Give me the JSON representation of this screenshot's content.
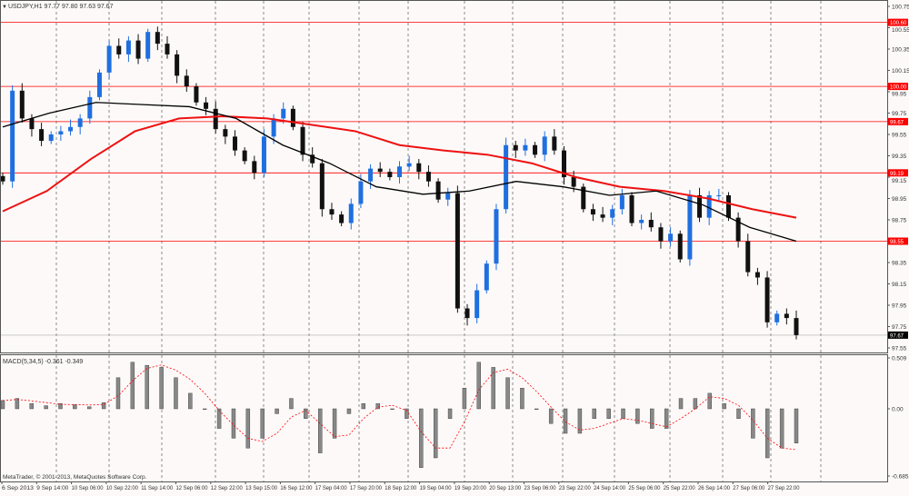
{
  "header": {
    "symbol_info": "USDJPY,H1  97.77 97.80 97.63 97.67"
  },
  "indicator": {
    "macd_label": "MACD(5,34,5) -0.361 -0.349"
  },
  "footer": {
    "copyright": "MetaTrader, © 2001-2013, MetaQuotes Software Corp."
  },
  "colors": {
    "background": "#fdf9f9",
    "bull": "#1f6fe0",
    "bear": "#111111",
    "level": "#ff0000",
    "ma_fast": "#000000",
    "ma_slow": "#ee1111",
    "macd_hist": "#888888",
    "macd_signal": "#ff0000"
  },
  "chart_data": [
    {
      "type": "candlestick",
      "title": "USDJPY,H1",
      "ylim": [
        97.5,
        100.8
      ],
      "y_ticks": [
        "100.75",
        "100.55",
        "100.35",
        "100.15",
        "99.95",
        "99.75",
        "99.55",
        "99.35",
        "99.15",
        "98.95",
        "98.75",
        "98.35",
        "98.15",
        "97.95",
        "97.75",
        "97.55"
      ],
      "x_ticks": [
        "6 Sep 2013",
        "9 Sep 14:00",
        "10 Sep 06:00",
        "10 Sep 22:00",
        "11 Sep 14:00",
        "12 Sep 06:00",
        "12 Sep 22:00",
        "13 Sep 15:00",
        "16 Sep 12:00",
        "17 Sep 04:00",
        "17 Sep 20:00",
        "18 Sep 12:00",
        "19 Sep 04:00",
        "19 Sep 20:00",
        "20 Sep 13:00",
        "23 Sep 06:00",
        "23 Sep 22:00",
        "24 Sep 14:00",
        "25 Sep 06:00",
        "25 Sep 22:00",
        "26 Sep 14:00",
        "27 Sep 06:00",
        "27 Sep 22:00"
      ],
      "levels": [
        {
          "value": 100.6,
          "label": "100.60"
        },
        {
          "value": 100.0,
          "label": "100.00"
        },
        {
          "value": 99.67,
          "label": "99.67"
        },
        {
          "value": 99.19,
          "label": "99.19"
        },
        {
          "value": 98.55,
          "label": "98.55"
        }
      ],
      "current_price": {
        "value": 97.67,
        "label": "97.67"
      },
      "closes": [
        99.11,
        99.96,
        99.7,
        99.6,
        99.49,
        99.55,
        99.58,
        99.62,
        99.7,
        99.9,
        100.13,
        100.38,
        100.3,
        100.43,
        100.26,
        100.51,
        100.4,
        100.3,
        100.1,
        100.0,
        99.85,
        99.79,
        99.6,
        99.53,
        99.4,
        99.3,
        99.19,
        99.53,
        99.7,
        99.79,
        99.62,
        99.36,
        99.28,
        98.85,
        98.8,
        98.72,
        98.9,
        99.11,
        99.23,
        99.2,
        99.15,
        99.25,
        99.28,
        99.2,
        99.11,
        98.94,
        99.0,
        97.92,
        97.83,
        98.09,
        98.34,
        98.85,
        99.45,
        99.4,
        99.45,
        99.36,
        99.53,
        99.4,
        99.15,
        99.06,
        98.85,
        98.8,
        98.77,
        98.85,
        98.98,
        98.72,
        98.75,
        98.68,
        98.55,
        98.62,
        98.38,
        98.98,
        98.77,
        98.98,
        98.98,
        98.77,
        98.55,
        98.26,
        98.21,
        97.79,
        97.87,
        97.83,
        97.67
      ],
      "ma_fast": [
        99.62,
        99.75,
        99.85,
        99.83,
        99.81,
        99.7,
        99.45,
        99.28,
        99.06,
        98.99,
        99.02,
        99.11,
        99.06,
        98.98,
        99.02,
        98.89,
        98.68,
        98.55
      ],
      "ma_slow": [
        98.83,
        99.02,
        99.32,
        99.58,
        99.7,
        99.72,
        99.7,
        99.64,
        99.58,
        99.45,
        99.4,
        99.36,
        99.28,
        99.15,
        99.06,
        99.02,
        98.95,
        98.85,
        98.77
      ]
    },
    {
      "type": "bar",
      "title": "MACD(5,34,5)",
      "ylim": [
        -0.685,
        0.509
      ],
      "y_ticks": [
        "0.509",
        "0.00",
        "-0.685"
      ],
      "histogram": [
        0.08,
        0.1,
        0.05,
        0.03,
        0.05,
        0.04,
        0.02,
        0.06,
        0.3,
        0.45,
        0.42,
        0.4,
        0.3,
        0.15,
        0.0,
        -0.2,
        -0.3,
        -0.4,
        -0.3,
        -0.05,
        0.1,
        -0.1,
        -0.45,
        -0.3,
        -0.05,
        0.05,
        0.05,
        0.0,
        -0.1,
        -0.6,
        -0.5,
        -0.1,
        0.2,
        0.45,
        0.4,
        0.3,
        0.2,
        0.0,
        -0.15,
        -0.25,
        -0.25,
        -0.1,
        -0.1,
        -0.1,
        -0.15,
        -0.2,
        -0.2,
        0.1,
        0.1,
        0.15,
        0.05,
        -0.1,
        -0.3,
        -0.5,
        -0.4,
        -0.35
      ]
    }
  ]
}
